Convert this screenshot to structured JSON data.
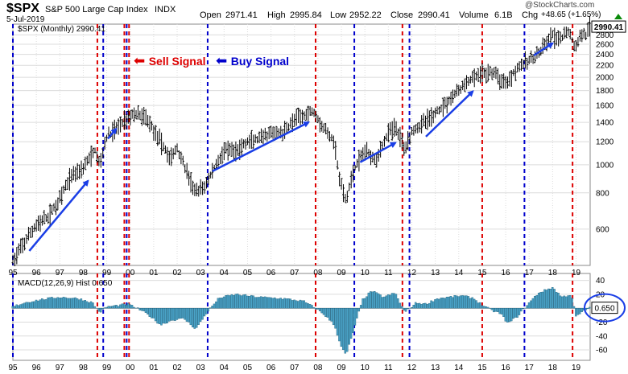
{
  "header": {
    "symbol": "$SPX",
    "name": "S&P 500 Large Cap Index",
    "exchange": "INDX",
    "date": "5-Jul-2019",
    "open_label": "Open",
    "open": "2971.41",
    "high_label": "High",
    "high": "2995.84",
    "low_label": "Low",
    "low": "2952.22",
    "close_label": "Close",
    "close": "2990.41",
    "volume_label": "Volume",
    "volume": "6.1B",
    "chg_label": "Chg",
    "chg": "+48.65 (+1.65%)",
    "watermark": "@StockCharts.com"
  },
  "colors": {
    "price_bars": "#000000",
    "sell_line": "#dd0000",
    "buy_line": "#0000cc",
    "arrow": "#1a3ee6",
    "macd_hist": "#4aa3c8",
    "macd_hist_edge": "#1f5f7a",
    "grid": "#dcdcdc",
    "last_value_box": "#000000"
  },
  "legend": {
    "sell_label": "Sell Signal",
    "buy_label": "Buy Signal",
    "price_series_label": "$SPX (Monthly) 2990.41",
    "macd_series_label": "MACD(12,26,9) Hist 0.650"
  },
  "chart_data": [
    {
      "type": "line",
      "subtype": "ohlc-bar",
      "title": "$SPX (Monthly)",
      "scale": "log",
      "ylim": [
        450,
        3050
      ],
      "y_ticks": [
        600,
        800,
        1000,
        1200,
        1400,
        1600,
        1800,
        2000,
        2200,
        2400,
        2600,
        2800
      ],
      "x_tick_labels": [
        "95",
        "96",
        "97",
        "98",
        "99",
        "00",
        "01",
        "02",
        "03",
        "04",
        "05",
        "06",
        "07",
        "08",
        "09",
        "10",
        "11",
        "12",
        "13",
        "14",
        "15",
        "16",
        "17",
        "18",
        "19"
      ],
      "x_range_years": [
        1995,
        2019.6
      ],
      "last_value": "2990.41",
      "anchors": [
        [
          1995.0,
          465
        ],
        [
          1995.5,
          540
        ],
        [
          1996.0,
          620
        ],
        [
          1996.5,
          660
        ],
        [
          1997.0,
          760
        ],
        [
          1997.5,
          920
        ],
        [
          1998.0,
          980
        ],
        [
          1998.5,
          1120
        ],
        [
          1998.7,
          1000
        ],
        [
          1999.0,
          1240
        ],
        [
          1999.5,
          1360
        ],
        [
          1999.9,
          1460
        ],
        [
          2000.2,
          1500
        ],
        [
          2000.7,
          1450
        ],
        [
          2001.0,
          1320
        ],
        [
          2001.3,
          1200
        ],
        [
          2001.7,
          1050
        ],
        [
          2002.0,
          1140
        ],
        [
          2002.5,
          900
        ],
        [
          2002.8,
          800
        ],
        [
          2003.2,
          850
        ],
        [
          2003.6,
          980
        ],
        [
          2004.0,
          1120
        ],
        [
          2004.5,
          1110
        ],
        [
          2005.0,
          1200
        ],
        [
          2005.5,
          1220
        ],
        [
          2006.0,
          1280
        ],
        [
          2006.5,
          1290
        ],
        [
          2007.0,
          1430
        ],
        [
          2007.8,
          1540
        ],
        [
          2008.2,
          1350
        ],
        [
          2008.7,
          1200
        ],
        [
          2008.9,
          900
        ],
        [
          2009.2,
          740
        ],
        [
          2009.5,
          950
        ],
        [
          2010.0,
          1120
        ],
        [
          2010.5,
          1050
        ],
        [
          2011.0,
          1290
        ],
        [
          2011.3,
          1350
        ],
        [
          2011.7,
          1140
        ],
        [
          2012.0,
          1310
        ],
        [
          2012.5,
          1400
        ],
        [
          2013.0,
          1500
        ],
        [
          2013.5,
          1650
        ],
        [
          2014.0,
          1800
        ],
        [
          2014.5,
          1960
        ],
        [
          2015.0,
          2060
        ],
        [
          2015.5,
          2080
        ],
        [
          2015.8,
          1950
        ],
        [
          2016.1,
          1940
        ],
        [
          2016.5,
          2170
        ],
        [
          2017.0,
          2280
        ],
        [
          2017.5,
          2450
        ],
        [
          2018.0,
          2800
        ],
        [
          2018.2,
          2650
        ],
        [
          2018.7,
          2900
        ],
        [
          2018.95,
          2500
        ],
        [
          2019.3,
          2900
        ],
        [
          2019.45,
          2750
        ],
        [
          2019.55,
          2990
        ]
      ],
      "signals": {
        "sell": [
          1998.6,
          1999.75,
          1999.95,
          2007.9,
          2011.6,
          2015.0,
          2018.85
        ],
        "buy": [
          1995.0,
          1998.85,
          1999.85,
          2003.3,
          2009.55,
          2011.9,
          2016.8
        ]
      },
      "arrows": [
        [
          [
            1995.7,
            505
          ],
          [
            1998.2,
            880
          ]
        ],
        [
          [
            1999.05,
            1230
          ],
          [
            1999.4,
            1330
          ]
        ],
        [
          [
            2003.5,
            950
          ],
          [
            2007.6,
            1400
          ]
        ],
        [
          [
            2009.8,
            1020
          ],
          [
            2011.3,
            1190
          ]
        ],
        [
          [
            2012.6,
            1250
          ],
          [
            2014.6,
            1790
          ]
        ],
        [
          [
            2017.2,
            2380
          ],
          [
            2018.0,
            2620
          ]
        ]
      ]
    },
    {
      "type": "bar",
      "title": "MACD(12,26,9) Hist",
      "ylim": [
        -75,
        50
      ],
      "y_ticks": [
        40,
        20,
        -20,
        -40,
        -60
      ],
      "last_value": "0.650",
      "anchors": [
        [
          1995.0,
          2
        ],
        [
          1995.5,
          8
        ],
        [
          1996.3,
          13
        ],
        [
          1997.0,
          16
        ],
        [
          1997.8,
          14
        ],
        [
          1998.4,
          8
        ],
        [
          1998.7,
          -6
        ],
        [
          1999.0,
          2
        ],
        [
          1999.5,
          4
        ],
        [
          1999.9,
          6
        ],
        [
          2000.3,
          0
        ],
        [
          2000.8,
          -10
        ],
        [
          2001.3,
          -24
        ],
        [
          2001.8,
          -17
        ],
        [
          2002.3,
          -15
        ],
        [
          2002.8,
          -30
        ],
        [
          2003.3,
          -5
        ],
        [
          2003.8,
          15
        ],
        [
          2004.5,
          20
        ],
        [
          2005.5,
          16
        ],
        [
          2006.5,
          14
        ],
        [
          2007.4,
          10
        ],
        [
          2007.9,
          0
        ],
        [
          2008.3,
          -10
        ],
        [
          2008.7,
          -24
        ],
        [
          2009.0,
          -55
        ],
        [
          2009.2,
          -68
        ],
        [
          2009.5,
          -35
        ],
        [
          2009.9,
          12
        ],
        [
          2010.3,
          25
        ],
        [
          2010.8,
          16
        ],
        [
          2011.3,
          22
        ],
        [
          2011.7,
          -6
        ],
        [
          2012.2,
          8
        ],
        [
          2012.6,
          6
        ],
        [
          2013.1,
          14
        ],
        [
          2013.6,
          16
        ],
        [
          2014.1,
          18
        ],
        [
          2014.6,
          15
        ],
        [
          2015.0,
          5
        ],
        [
          2015.4,
          -3
        ],
        [
          2015.8,
          -8
        ],
        [
          2016.1,
          -22
        ],
        [
          2016.5,
          -12
        ],
        [
          2016.9,
          4
        ],
        [
          2017.4,
          22
        ],
        [
          2018.0,
          30
        ],
        [
          2018.4,
          16
        ],
        [
          2018.8,
          20
        ],
        [
          2019.0,
          -12
        ],
        [
          2019.3,
          -5
        ],
        [
          2019.55,
          0.65
        ]
      ]
    }
  ]
}
